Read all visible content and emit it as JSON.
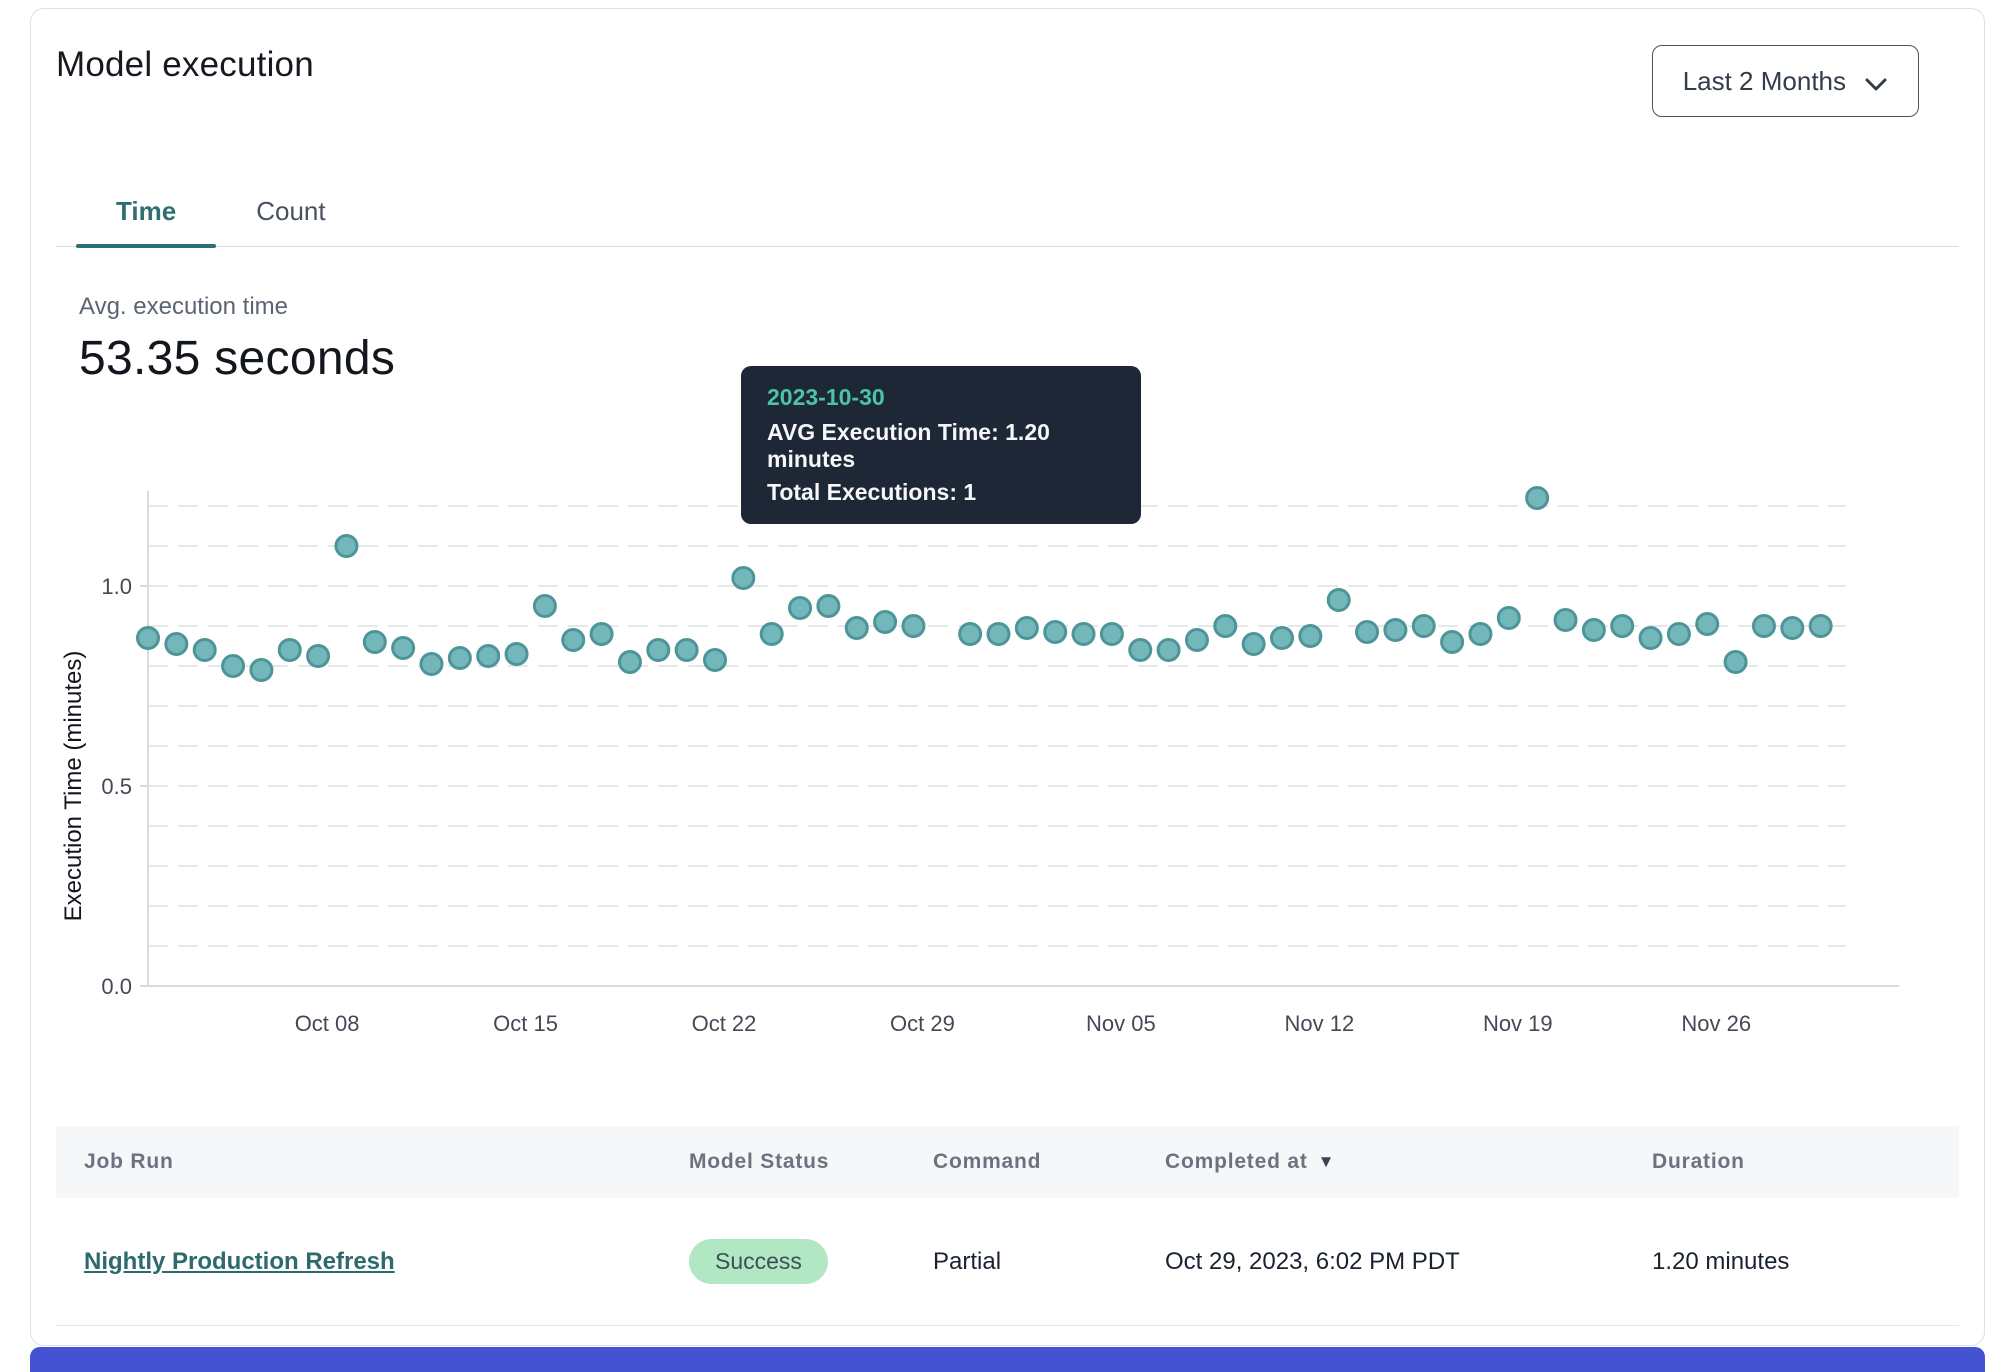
{
  "header": {
    "title": "Model execution",
    "range_selector": "Last 2 Months"
  },
  "tabs": [
    {
      "label": "Time",
      "active": true
    },
    {
      "label": "Count",
      "active": false
    }
  ],
  "metric": {
    "label": "Avg. execution time",
    "value": "53.35 seconds"
  },
  "tooltip": {
    "date": "2023-10-30",
    "line1": "AVG Execution Time: 1.20 minutes",
    "line2": "Total Executions: 1"
  },
  "chart_data": {
    "type": "scatter",
    "title": "",
    "xlabel": "",
    "ylabel": "Execution Time (minutes)",
    "ylim": [
      0,
      1.25
    ],
    "y_ticks": [
      0.0,
      0.5,
      1.0
    ],
    "gridline_step": 0.1,
    "grid": true,
    "legend": false,
    "x_ticks": [
      {
        "label": "Oct 08",
        "date": "2023-10-08"
      },
      {
        "label": "Oct 15",
        "date": "2023-10-15"
      },
      {
        "label": "Oct 22",
        "date": "2023-10-22"
      },
      {
        "label": "Oct 29",
        "date": "2023-10-29"
      },
      {
        "label": "Nov 05",
        "date": "2023-11-05"
      },
      {
        "label": "Nov 12",
        "date": "2023-11-12"
      },
      {
        "label": "Nov 19",
        "date": "2023-11-19"
      },
      {
        "label": "Nov 26",
        "date": "2023-11-26"
      }
    ],
    "dates": [
      "2023-10-02",
      "2023-10-03",
      "2023-10-04",
      "2023-10-05",
      "2023-10-06",
      "2023-10-07",
      "2023-10-08",
      "2023-10-09",
      "2023-10-10",
      "2023-10-11",
      "2023-10-12",
      "2023-10-13",
      "2023-10-14",
      "2023-10-15",
      "2023-10-16",
      "2023-10-17",
      "2023-10-18",
      "2023-10-19",
      "2023-10-20",
      "2023-10-21",
      "2023-10-22",
      "2023-10-23",
      "2023-10-24",
      "2023-10-25",
      "2023-10-26",
      "2023-10-27",
      "2023-10-28",
      "2023-10-29",
      "2023-10-30",
      "2023-10-31",
      "2023-11-01",
      "2023-11-02",
      "2023-11-03",
      "2023-11-04",
      "2023-11-05",
      "2023-11-06",
      "2023-11-07",
      "2023-11-08",
      "2023-11-09",
      "2023-11-10",
      "2023-11-11",
      "2023-11-12",
      "2023-11-13",
      "2023-11-14",
      "2023-11-15",
      "2023-11-16",
      "2023-11-17",
      "2023-11-18",
      "2023-11-19",
      "2023-11-20",
      "2023-11-21",
      "2023-11-22",
      "2023-11-23",
      "2023-11-24",
      "2023-11-25",
      "2023-11-26",
      "2023-11-27",
      "2023-11-28",
      "2023-11-29",
      "2023-11-30"
    ],
    "values": [
      0.87,
      0.855,
      0.84,
      0.8,
      0.79,
      0.84,
      0.825,
      1.1,
      0.86,
      0.845,
      0.805,
      0.82,
      0.825,
      0.83,
      0.95,
      0.865,
      0.88,
      0.81,
      0.84,
      0.84,
      0.815,
      1.02,
      0.88,
      0.945,
      0.95,
      0.895,
      0.91,
      0.9,
      1.2,
      0.88,
      0.88,
      0.895,
      0.885,
      0.88,
      0.88,
      0.84,
      0.84,
      0.865,
      0.9,
      0.855,
      0.87,
      0.875,
      0.965,
      0.885,
      0.89,
      0.9,
      0.86,
      0.88,
      0.92,
      1.22,
      0.915,
      0.89,
      0.9,
      0.87,
      0.88,
      0.905,
      0.81,
      0.9,
      0.895,
      0.9
    ],
    "highlight_date": "2023-10-30",
    "point_color": "#74b7ba",
    "point_border": "#4d9598",
    "highlight_color": "#3b7a80",
    "grid_color": "#e6e7ea",
    "axis_color": "#d9dbdf",
    "tick_text_color": "#434a56"
  },
  "table": {
    "columns": [
      "Job Run",
      "Model Status",
      "Command",
      "Completed at",
      "Duration"
    ],
    "sort_column": "Completed at",
    "sort_indicator": "▼",
    "rows": [
      {
        "job_run": "Nightly Production Refresh",
        "model_status": "Success",
        "command": "Partial",
        "completed_at": "Oct 29, 2023, 6:02 PM PDT",
        "duration": "1.20 minutes"
      }
    ]
  },
  "status_colors": {
    "success_bg": "#b2e7c3",
    "success_text": "#3d4f57"
  }
}
